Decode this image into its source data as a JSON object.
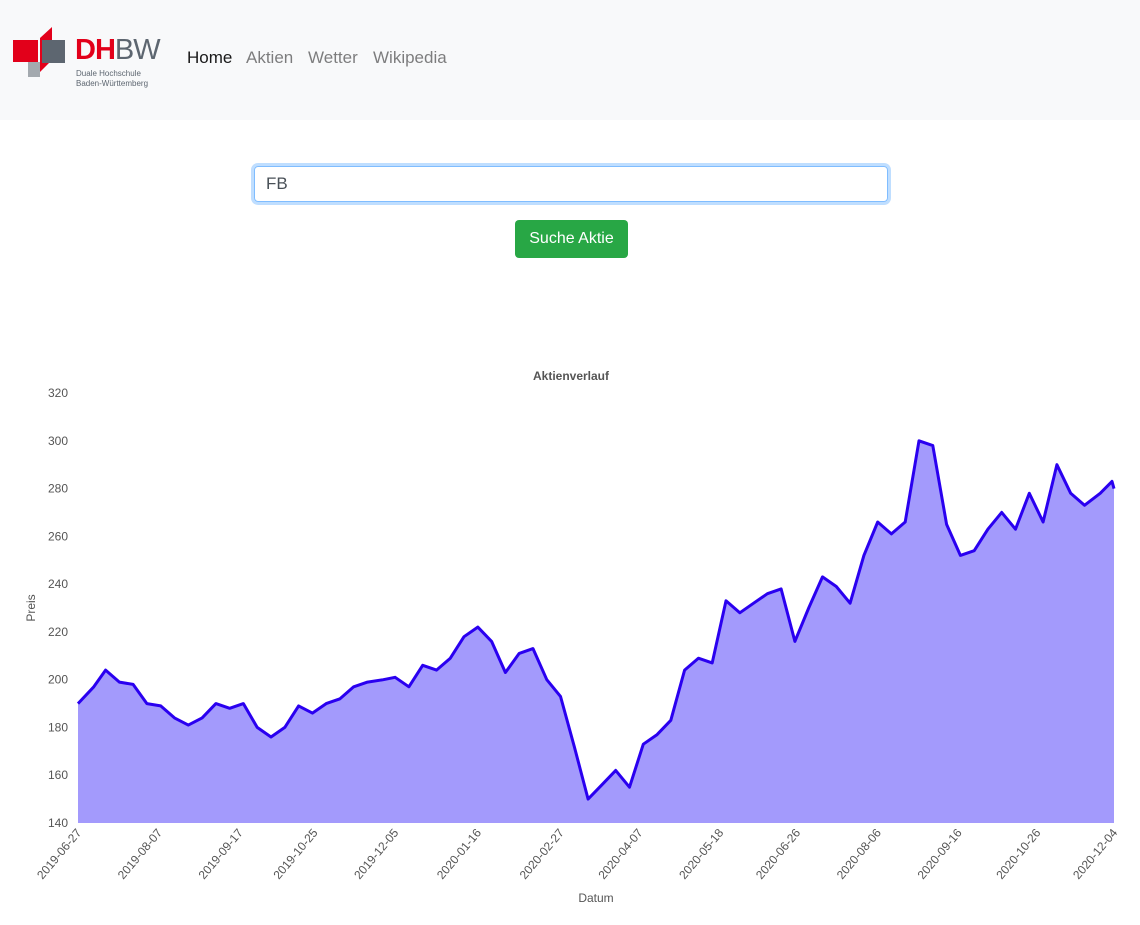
{
  "navbar": {
    "brand": [
      "DH",
      "BW"
    ],
    "brand_sub": [
      "Duale Hochschule",
      "Baden-Württemberg"
    ],
    "links": [
      "Home",
      "Aktien",
      "Wetter",
      "Wikipedia"
    ]
  },
  "search": {
    "input_value": "FB",
    "button": "Suche Aktie"
  },
  "chart_data": {
    "type": "area",
    "title": "Aktienverlauf",
    "x_label": "Datum",
    "y_label": "Preis",
    "x": [
      "2019-06-27",
      "2019-07-05",
      "2019-07-11",
      "2019-07-18",
      "2019-07-25",
      "2019-08-01",
      "2019-08-08",
      "2019-08-15",
      "2019-08-22",
      "2019-08-29",
      "2019-09-05",
      "2019-09-12",
      "2019-09-19",
      "2019-09-26",
      "2019-10-03",
      "2019-10-10",
      "2019-10-17",
      "2019-10-24",
      "2019-10-31",
      "2019-11-07",
      "2019-11-14",
      "2019-11-21",
      "2019-11-29",
      "2019-12-05",
      "2019-12-12",
      "2019-12-19",
      "2019-12-26",
      "2020-01-02",
      "2020-01-09",
      "2020-01-16",
      "2020-01-23",
      "2020-01-30",
      "2020-02-06",
      "2020-02-13",
      "2020-02-20",
      "2020-02-27",
      "2020-03-05",
      "2020-03-12",
      "2020-03-19",
      "2020-03-26",
      "2020-04-02",
      "2020-04-09",
      "2020-04-16",
      "2020-04-23",
      "2020-04-30",
      "2020-05-07",
      "2020-05-14",
      "2020-05-21",
      "2020-05-28",
      "2020-06-04",
      "2020-06-11",
      "2020-06-18",
      "2020-06-25",
      "2020-07-02",
      "2020-07-09",
      "2020-07-16",
      "2020-07-23",
      "2020-07-30",
      "2020-08-06",
      "2020-08-13",
      "2020-08-20",
      "2020-08-27",
      "2020-09-03",
      "2020-09-10",
      "2020-09-17",
      "2020-09-24",
      "2020-10-01",
      "2020-10-08",
      "2020-10-15",
      "2020-10-22",
      "2020-10-29",
      "2020-11-05",
      "2020-11-12",
      "2020-11-19",
      "2020-11-27",
      "2020-12-03",
      "2020-12-04"
    ],
    "values": [
      190,
      197,
      204,
      199,
      198,
      190,
      189,
      184,
      181,
      184,
      190,
      188,
      190,
      180,
      176,
      180,
      189,
      186,
      190,
      192,
      197,
      199,
      200,
      201,
      197,
      206,
      204,
      209,
      218,
      222,
      216,
      203,
      211,
      213,
      200,
      193,
      172,
      150,
      156,
      162,
      155,
      173,
      177,
      183,
      204,
      209,
      207,
      233,
      228,
      232,
      236,
      238,
      216,
      230,
      243,
      239,
      232,
      252,
      266,
      261,
      266,
      300,
      298,
      265,
      252,
      254,
      263,
      270,
      263,
      278,
      266,
      290,
      278,
      273,
      278,
      283,
      280
    ],
    "color": "#2a00f0",
    "fill_color": "#a39afc",
    "xlim": [
      "2019-06-27",
      "2020-12-04"
    ],
    "xticks": [
      "2019-06-27",
      "2019-08-07",
      "2019-09-17",
      "2019-10-25",
      "2019-12-05",
      "2020-01-16",
      "2020-02-27",
      "2020-04-07",
      "2020-05-18",
      "2020-06-26",
      "2020-08-06",
      "2020-09-16",
      "2020-10-26",
      "2020-12-04"
    ],
    "ylim": [
      140,
      320
    ],
    "yticks": [
      140,
      160,
      180,
      200,
      220,
      240,
      260,
      280,
      300,
      320
    ],
    "grid": false
  }
}
